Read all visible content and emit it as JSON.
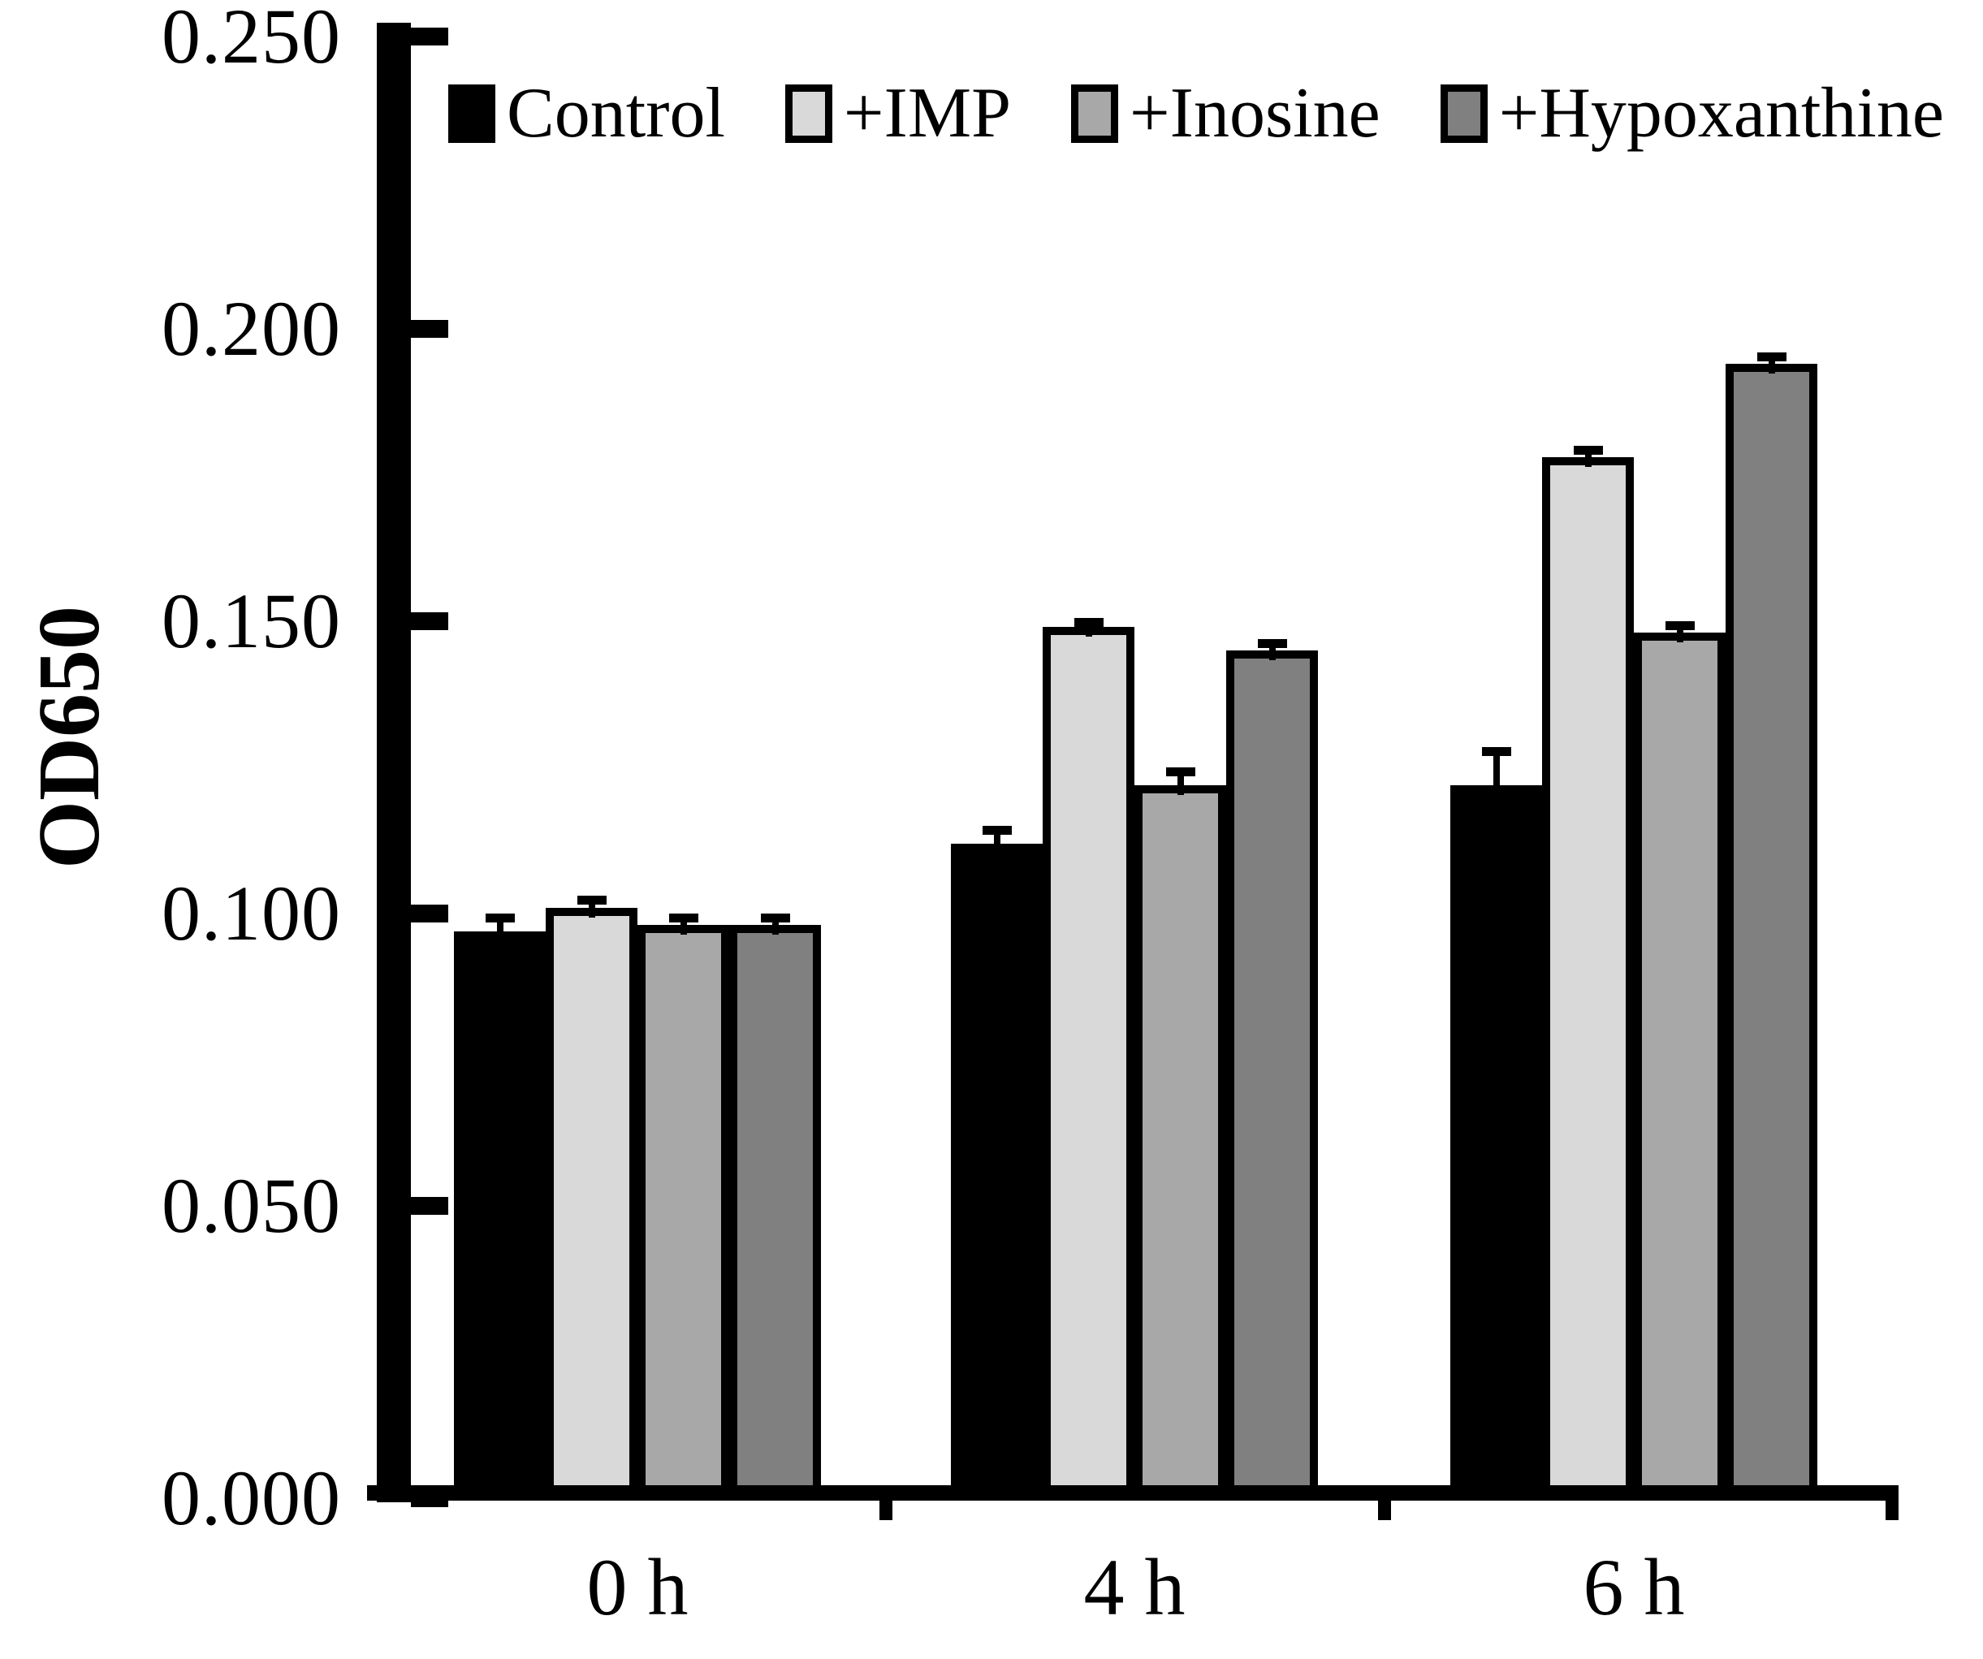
{
  "chart_data": {
    "type": "bar",
    "title": "",
    "ylabel": "OD650",
    "xlabel": "",
    "categories": [
      "0 h",
      "4 h",
      "6 h"
    ],
    "series": [
      {
        "name": "Control",
        "color": "#000000",
        "values": [
          0.097,
          0.112,
          0.122
        ],
        "errors": [
          0.003,
          0.003,
          0.0065
        ]
      },
      {
        "name": "+IMP",
        "color": "#d9d9d9",
        "values": [
          0.101,
          0.149,
          0.178
        ],
        "errors": [
          0.002,
          0.0015,
          0.002
        ]
      },
      {
        "name": "+Inosine",
        "color": "#a8a8a8",
        "values": [
          0.098,
          0.122,
          0.148
        ],
        "errors": [
          0.002,
          0.003,
          0.002
        ]
      },
      {
        "name": "+Hypoxanthine",
        "color": "#808080",
        "values": [
          0.098,
          0.145,
          0.194
        ],
        "errors": [
          0.002,
          0.002,
          0.002
        ]
      }
    ],
    "ylim": [
      0.0,
      0.25
    ],
    "ytick_step": 0.05,
    "ytick_labels": [
      "0.000",
      "0.050",
      "0.100",
      "0.150",
      "0.200",
      "0.250"
    ],
    "legend_position": "top",
    "grid": false,
    "axis_color": "#000000",
    "bar_border_color": "#000000",
    "error_bar_color": "#000000"
  }
}
